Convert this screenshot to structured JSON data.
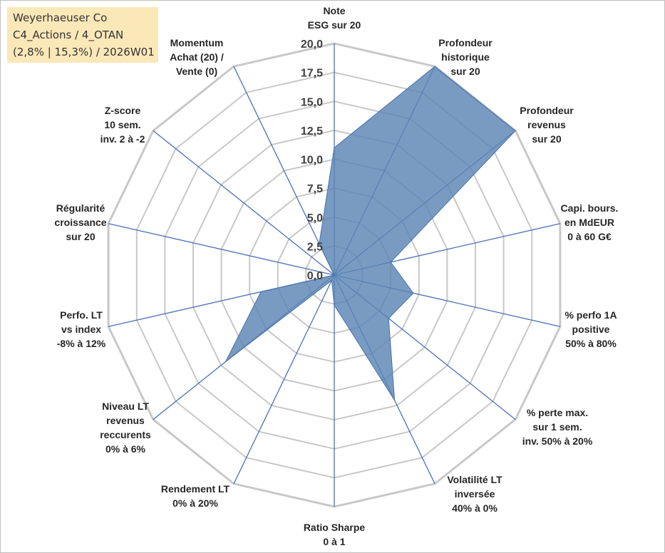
{
  "info_box": {
    "line1": "Weyerhaeuser Co",
    "line2": "C4_Actions / 4_OTAN",
    "line3": "(2,8% | 15,3%) / 2026W01"
  },
  "chart_data": {
    "type": "radar",
    "title": "",
    "rmin": 0,
    "rmax": 20,
    "tick_step": 2.5,
    "tick_labels": [
      "0,0",
      "2,5",
      "5,0",
      "7,5",
      "10,0",
      "12,5",
      "15,0",
      "17,5",
      "20,0"
    ],
    "categories": [
      [
        "Note",
        "ESG sur 20"
      ],
      [
        "Profondeur",
        "historique",
        "sur 20"
      ],
      [
        "Profondeur",
        "revenus",
        "sur 20"
      ],
      [
        "Capi. bours.",
        "en MdEUR",
        "0 à 60 G€"
      ],
      [
        "% perfo 1A",
        "positive",
        "50% à 80%"
      ],
      [
        "% perte max.",
        "sur 1 sem.",
        "inv. 50% à 20%"
      ],
      [
        "Volatilité LT",
        "inversée",
        "40% à 0%"
      ],
      [
        "Ratio Sharpe",
        "0 à 1"
      ],
      [
        "Rendement LT",
        "0% à 20%"
      ],
      [
        "Niveau LT",
        "revenus",
        "reccurents",
        "0% à 6%"
      ],
      [
        "Perfo. LT",
        "vs index",
        "-8% à 12%"
      ],
      [
        "Régularité",
        "croissance",
        "sur 20"
      ],
      [
        "Z-score",
        "10 sem.",
        "inv. 2 à -2"
      ],
      [
        "Momentum",
        "Achat (20) /",
        "Vente (0)"
      ]
    ],
    "series": [
      {
        "name": "Weyerhaeuser Co",
        "values": [
          11,
          20,
          20,
          5,
          7,
          6,
          12,
          2.6,
          0.5,
          12,
          6.5,
          0,
          0,
          3
        ],
        "color": "#5b85b5",
        "fill_opacity": 0.82
      }
    ],
    "grid_color": "#c8c8c8",
    "axis_color": "#4a72b8"
  }
}
